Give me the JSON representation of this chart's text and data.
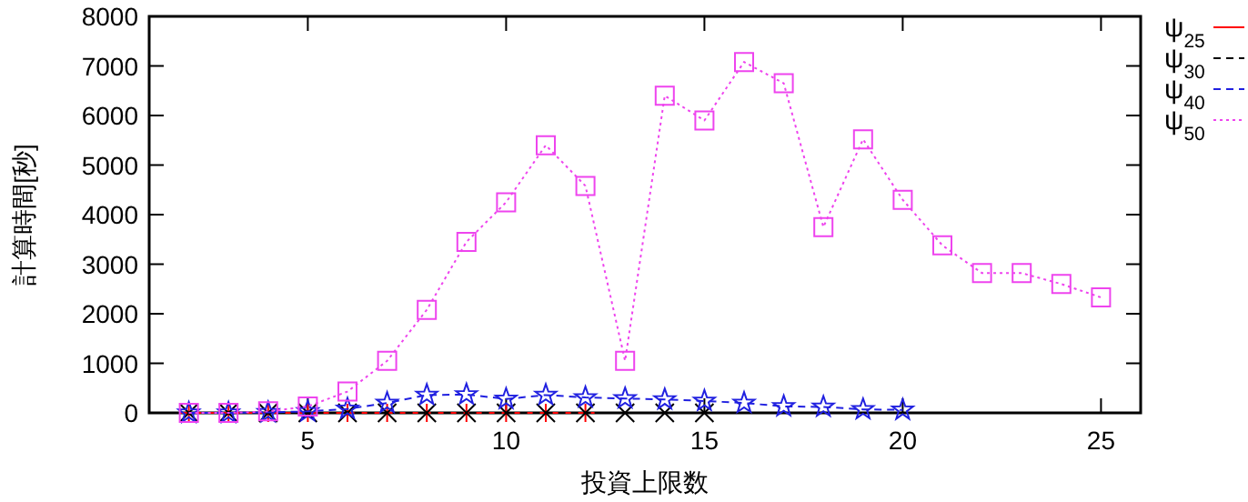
{
  "chart_data": {
    "type": "line",
    "xlabel": "投資上限数",
    "ylabel": "計算時間[秒]",
    "xlim": [
      1,
      26
    ],
    "ylim": [
      0,
      8000
    ],
    "xticks": [
      5,
      10,
      15,
      20,
      25
    ],
    "yticks": [
      0,
      1000,
      2000,
      3000,
      4000,
      5000,
      6000,
      7000,
      8000
    ],
    "grid": false,
    "legend": "top right",
    "series": [
      {
        "name": "ψ$_{25}$",
        "color": "#ff0000",
        "marker": "plus",
        "line_style": "solid",
        "x": [
          2,
          3,
          4,
          5,
          6,
          7,
          8,
          9,
          10,
          11,
          12
        ],
        "values": [
          0,
          0,
          0,
          0,
          0,
          0,
          0,
          0,
          0,
          0,
          0
        ]
      },
      {
        "name": "ψ$_{30}$",
        "color": "#000000",
        "marker": "cross",
        "line_style": "dashed",
        "x": [
          2,
          3,
          4,
          5,
          6,
          7,
          8,
          9,
          10,
          11,
          12,
          13,
          14,
          15
        ],
        "values": [
          0,
          0,
          0,
          0,
          0,
          0,
          0,
          0,
          0,
          0,
          0,
          0,
          0,
          0
        ]
      },
      {
        "name": "ψ$_{40}$",
        "color": "#2020e0",
        "marker": "star",
        "line_style": "dashed",
        "x": [
          2,
          3,
          4,
          5,
          6,
          7,
          8,
          9,
          10,
          11,
          12,
          13,
          14,
          15,
          16,
          17,
          18,
          19,
          20
        ],
        "values": [
          0,
          0,
          10,
          30,
          80,
          200,
          360,
          370,
          280,
          360,
          310,
          290,
          270,
          240,
          200,
          130,
          120,
          70,
          60
        ]
      },
      {
        "name": "ψ$_{50}$",
        "color": "#ee44ee",
        "marker": "square",
        "line_style": "dotted",
        "x": [
          2,
          3,
          4,
          5,
          6,
          7,
          8,
          9,
          10,
          11,
          12,
          13,
          14,
          15,
          16,
          17,
          18,
          19,
          20,
          21,
          22,
          23,
          24,
          25
        ],
        "values": [
          0,
          0,
          30,
          130,
          430,
          1050,
          2080,
          3450,
          4250,
          5400,
          4580,
          1050,
          6400,
          5900,
          7080,
          6650,
          3750,
          5520,
          4300,
          3380,
          2820,
          2820,
          2600,
          2330
        ]
      }
    ]
  }
}
